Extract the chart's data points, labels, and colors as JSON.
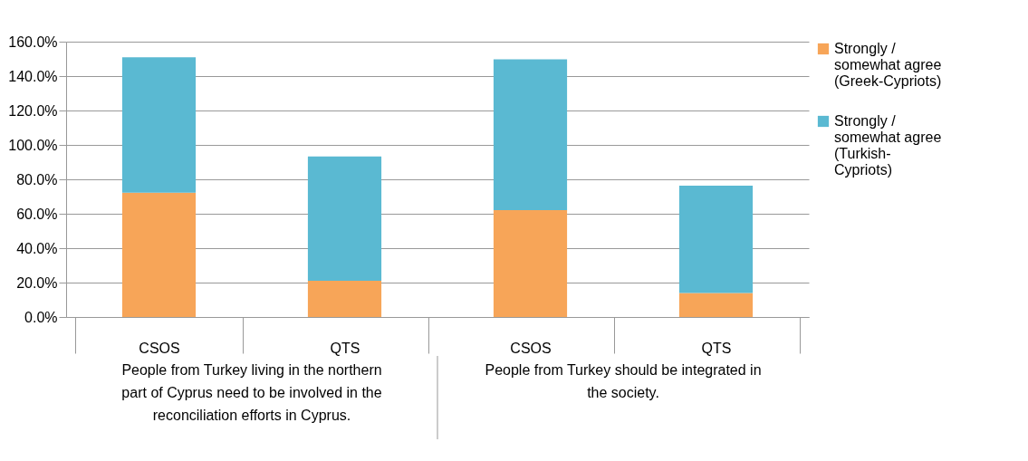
{
  "chart_data": {
    "type": "bar",
    "stacked": true,
    "categories": [
      "CSOS",
      "QTS",
      "CSOS",
      "QTS"
    ],
    "series": [
      {
        "name": "Strongly / somewhat agree (Greek-Cypriots)",
        "color": "#f7a558",
        "values": [
          72.2,
          21.1,
          62.1,
          14.0
        ]
      },
      {
        "name": "Strongly / somewhat agree (Turkish-Cypriots)",
        "color": "#5ab9d2",
        "values": [
          78.7,
          72.2,
          87.6,
          62.3
        ]
      }
    ],
    "ylim": [
      0,
      160
    ],
    "yticks": [
      {
        "value": 0,
        "label": "0.0%"
      },
      {
        "value": 20,
        "label": "20.0%"
      },
      {
        "value": 40,
        "label": "40.0%"
      },
      {
        "value": 60,
        "label": "60.0%"
      },
      {
        "value": 80,
        "label": "80.0%"
      },
      {
        "value": 100,
        "label": "100.0%"
      },
      {
        "value": 120,
        "label": "120.0%"
      },
      {
        "value": 140,
        "label": "140.0%"
      },
      {
        "value": 160,
        "label": "160.0%"
      }
    ],
    "annotations": [
      "People from Turkey living in the northern part of Cyprus need to be involved in the reconciliation efforts in Cyprus.",
      "People from Turkey should be integrated in the society."
    ],
    "grid": "y",
    "legend": "right"
  }
}
